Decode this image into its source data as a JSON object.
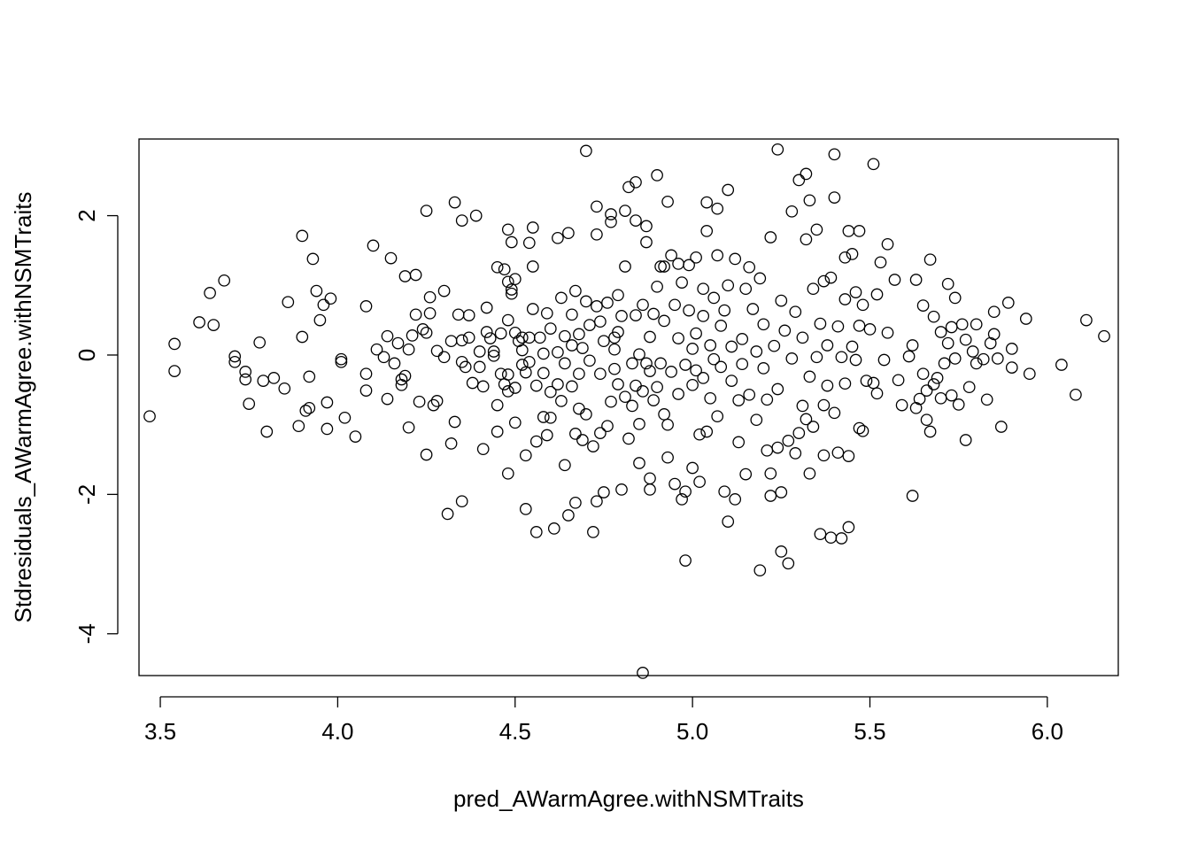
{
  "chart_data": {
    "type": "scatter",
    "title": "",
    "xlabel": "pred_AWarmAgree.withNSMTraits",
    "ylabel": "Stdresiduals_AWarmAgree.withNSMTraits",
    "xlim": [
      3.44,
      6.2
    ],
    "ylim": [
      -4.6,
      3.1
    ],
    "xticks": [
      3.5,
      4.0,
      4.5,
      5.0,
      5.5,
      6.0
    ],
    "xtick_labels": [
      "3.5",
      "4.0",
      "4.5",
      "5.0",
      "5.5",
      "6.0"
    ],
    "yticks": [
      -4,
      -2,
      0,
      2
    ],
    "ytick_labels": [
      "-4",
      "-2",
      "0",
      "2"
    ],
    "grid": false,
    "marker": "open-circle",
    "points": [
      [
        3.47,
        -0.88
      ],
      [
        3.54,
        0.16
      ],
      [
        3.54,
        -0.23
      ],
      [
        3.61,
        0.47
      ],
      [
        3.64,
        0.89
      ],
      [
        3.65,
        0.43
      ],
      [
        3.68,
        1.07
      ],
      [
        3.71,
        -0.02
      ],
      [
        3.71,
        -0.1
      ],
      [
        3.74,
        -0.24
      ],
      [
        3.74,
        -0.35
      ],
      [
        3.75,
        -0.7
      ],
      [
        3.78,
        0.18
      ],
      [
        3.79,
        -0.37
      ],
      [
        3.8,
        -1.1
      ],
      [
        3.82,
        -0.33
      ],
      [
        3.85,
        -0.48
      ],
      [
        3.86,
        0.76
      ],
      [
        3.89,
        -1.02
      ],
      [
        3.9,
        0.26
      ],
      [
        3.9,
        1.71
      ],
      [
        3.91,
        -0.8
      ],
      [
        3.92,
        -0.76
      ],
      [
        3.92,
        -0.31
      ],
      [
        3.93,
        1.38
      ],
      [
        3.94,
        0.92
      ],
      [
        3.95,
        0.5
      ],
      [
        3.96,
        0.72
      ],
      [
        3.97,
        -0.68
      ],
      [
        3.97,
        -1.06
      ],
      [
        3.98,
        0.81
      ],
      [
        4.01,
        -0.06
      ],
      [
        4.01,
        -0.1
      ],
      [
        4.02,
        -0.9
      ],
      [
        4.05,
        -1.17
      ],
      [
        4.08,
        0.7
      ],
      [
        4.08,
        -0.27
      ],
      [
        4.08,
        -0.51
      ],
      [
        4.1,
        1.57
      ],
      [
        4.11,
        0.08
      ],
      [
        4.13,
        -0.03
      ],
      [
        4.14,
        -0.63
      ],
      [
        4.14,
        0.27
      ],
      [
        4.15,
        1.39
      ],
      [
        4.16,
        -0.12
      ],
      [
        4.17,
        0.17
      ],
      [
        4.18,
        -0.35
      ],
      [
        4.18,
        -0.43
      ],
      [
        4.19,
        -0.3
      ],
      [
        4.19,
        1.13
      ],
      [
        4.2,
        0.08
      ],
      [
        4.2,
        -1.04
      ],
      [
        4.21,
        0.28
      ],
      [
        4.22,
        0.58
      ],
      [
        4.22,
        1.15
      ],
      [
        4.23,
        -0.67
      ],
      [
        4.24,
        0.37
      ],
      [
        4.25,
        0.32
      ],
      [
        4.25,
        2.07
      ],
      [
        4.25,
        -1.43
      ],
      [
        4.26,
        0.83
      ],
      [
        4.26,
        0.6
      ],
      [
        4.27,
        -0.72
      ],
      [
        4.28,
        -0.66
      ],
      [
        4.28,
        0.06
      ],
      [
        4.3,
        0.92
      ],
      [
        4.3,
        -0.03
      ],
      [
        4.31,
        -2.28
      ],
      [
        4.32,
        -1.27
      ],
      [
        4.32,
        0.2
      ],
      [
        4.33,
        2.19
      ],
      [
        4.33,
        -0.96
      ],
      [
        4.34,
        0.58
      ],
      [
        4.35,
        -0.1
      ],
      [
        4.35,
        0.21
      ],
      [
        4.35,
        1.93
      ],
      [
        4.35,
        -2.1
      ],
      [
        4.36,
        -0.17
      ],
      [
        4.37,
        0.57
      ],
      [
        4.37,
        0.25
      ],
      [
        4.38,
        -0.4
      ],
      [
        4.39,
        2.0
      ],
      [
        4.4,
        -0.17
      ],
      [
        4.4,
        0.05
      ],
      [
        4.41,
        -0.45
      ],
      [
        4.41,
        -1.35
      ],
      [
        4.42,
        0.33
      ],
      [
        4.42,
        0.68
      ],
      [
        4.43,
        0.24
      ],
      [
        4.44,
        -0.01
      ],
      [
        4.44,
        0.05
      ],
      [
        4.45,
        -0.72
      ],
      [
        4.45,
        -1.1
      ],
      [
        4.45,
        1.26
      ],
      [
        4.46,
        -0.27
      ],
      [
        4.46,
        0.31
      ],
      [
        4.47,
        1.23
      ],
      [
        4.47,
        -0.42
      ],
      [
        4.48,
        1.8
      ],
      [
        4.48,
        1.05
      ],
      [
        4.48,
        0.5
      ],
      [
        4.48,
        -0.28
      ],
      [
        4.48,
        -0.52
      ],
      [
        4.48,
        -1.7
      ],
      [
        4.49,
        0.94
      ],
      [
        4.49,
        0.88
      ],
      [
        4.49,
        1.62
      ],
      [
        4.5,
        -0.47
      ],
      [
        4.5,
        -0.97
      ],
      [
        4.5,
        0.32
      ],
      [
        4.5,
        1.09
      ],
      [
        4.51,
        0.2
      ],
      [
        4.52,
        0.07
      ],
      [
        4.52,
        -0.14
      ],
      [
        4.52,
        0.25
      ],
      [
        4.53,
        -0.25
      ],
      [
        4.53,
        -1.44
      ],
      [
        4.53,
        -2.21
      ],
      [
        4.54,
        1.61
      ],
      [
        4.54,
        -0.1
      ],
      [
        4.54,
        0.25
      ],
      [
        4.55,
        0.66
      ],
      [
        4.55,
        1.27
      ],
      [
        4.55,
        1.83
      ],
      [
        4.56,
        -0.44
      ],
      [
        4.56,
        -1.24
      ],
      [
        4.56,
        -2.54
      ],
      [
        4.57,
        0.25
      ],
      [
        4.58,
        -0.26
      ],
      [
        4.58,
        0.02
      ],
      [
        4.58,
        -0.89
      ],
      [
        4.59,
        0.6
      ],
      [
        4.59,
        -1.15
      ],
      [
        4.6,
        -0.53
      ],
      [
        4.6,
        -0.9
      ],
      [
        4.6,
        0.38
      ],
      [
        4.61,
        -2.49
      ],
      [
        4.62,
        0.04
      ],
      [
        4.62,
        -0.42
      ],
      [
        4.62,
        1.68
      ],
      [
        4.63,
        0.82
      ],
      [
        4.63,
        -0.66
      ],
      [
        4.64,
        -1.58
      ],
      [
        4.64,
        0.27
      ],
      [
        4.64,
        -0.12
      ],
      [
        4.65,
        1.75
      ],
      [
        4.65,
        -2.3
      ],
      [
        4.66,
        -0.45
      ],
      [
        4.66,
        0.58
      ],
      [
        4.66,
        0.14
      ],
      [
        4.67,
        -1.13
      ],
      [
        4.67,
        -2.12
      ],
      [
        4.67,
        0.92
      ],
      [
        4.68,
        -0.27
      ],
      [
        4.68,
        0.3
      ],
      [
        4.68,
        -0.77
      ],
      [
        4.69,
        0.1
      ],
      [
        4.69,
        -1.22
      ],
      [
        4.7,
        2.93
      ],
      [
        4.7,
        0.77
      ],
      [
        4.7,
        -0.85
      ],
      [
        4.71,
        -0.08
      ],
      [
        4.71,
        0.43
      ],
      [
        4.72,
        -1.31
      ],
      [
        4.72,
        -2.54
      ],
      [
        4.73,
        0.7
      ],
      [
        4.73,
        2.13
      ],
      [
        4.73,
        1.73
      ],
      [
        4.73,
        -2.1
      ],
      [
        4.74,
        -0.27
      ],
      [
        4.74,
        0.48
      ],
      [
        4.74,
        -1.12
      ],
      [
        4.75,
        -1.97
      ],
      [
        4.75,
        0.2
      ],
      [
        4.76,
        0.75
      ],
      [
        4.76,
        -1.02
      ],
      [
        4.77,
        2.02
      ],
      [
        4.77,
        -0.67
      ],
      [
        4.77,
        1.91
      ],
      [
        4.78,
        0.08
      ],
      [
        4.78,
        0.25
      ],
      [
        4.78,
        -0.2
      ],
      [
        4.79,
        0.33
      ],
      [
        4.79,
        0.86
      ],
      [
        4.79,
        -0.42
      ],
      [
        4.8,
        -1.93
      ],
      [
        4.8,
        0.56
      ],
      [
        4.81,
        1.27
      ],
      [
        4.81,
        -0.6
      ],
      [
        4.81,
        2.07
      ],
      [
        4.82,
        -1.2
      ],
      [
        4.82,
        2.41
      ],
      [
        4.83,
        -0.12
      ],
      [
        4.83,
        -0.73
      ],
      [
        4.84,
        0.57
      ],
      [
        4.84,
        2.48
      ],
      [
        4.84,
        -0.44
      ],
      [
        4.84,
        1.93
      ],
      [
        4.85,
        0.01
      ],
      [
        4.85,
        -0.99
      ],
      [
        4.85,
        -1.55
      ],
      [
        4.86,
        -0.52
      ],
      [
        4.86,
        0.72
      ],
      [
        4.86,
        -4.56
      ],
      [
        4.87,
        -0.12
      ],
      [
        4.87,
        1.62
      ],
      [
        4.87,
        1.85
      ],
      [
        4.88,
        -0.23
      ],
      [
        4.88,
        0.26
      ],
      [
        4.88,
        -1.77
      ],
      [
        4.88,
        -1.93
      ],
      [
        4.89,
        0.59
      ],
      [
        4.89,
        -0.65
      ],
      [
        4.9,
        2.58
      ],
      [
        4.9,
        0.98
      ],
      [
        4.9,
        -0.46
      ],
      [
        4.91,
        1.27
      ],
      [
        4.91,
        -0.12
      ],
      [
        4.92,
        1.27
      ],
      [
        4.92,
        -0.85
      ],
      [
        4.92,
        0.49
      ],
      [
        4.93,
        2.2
      ],
      [
        4.93,
        -1.47
      ],
      [
        4.93,
        -1.0
      ],
      [
        4.94,
        1.43
      ],
      [
        4.94,
        -0.24
      ],
      [
        4.95,
        0.72
      ],
      [
        4.95,
        -1.85
      ],
      [
        4.96,
        1.31
      ],
      [
        4.96,
        -0.56
      ],
      [
        4.96,
        0.24
      ],
      [
        4.97,
        -2.07
      ],
      [
        4.97,
        1.04
      ],
      [
        4.98,
        -0.14
      ],
      [
        4.98,
        -2.95
      ],
      [
        4.98,
        -1.96
      ],
      [
        4.99,
        0.64
      ],
      [
        4.99,
        1.29
      ],
      [
        5.0,
        -0.43
      ],
      [
        5.0,
        0.09
      ],
      [
        5.0,
        -1.62
      ],
      [
        5.01,
        1.4
      ],
      [
        5.01,
        -0.22
      ],
      [
        5.01,
        0.31
      ],
      [
        5.02,
        -1.14
      ],
      [
        5.02,
        -1.82
      ],
      [
        5.03,
        0.95
      ],
      [
        5.03,
        -0.33
      ],
      [
        5.03,
        0.56
      ],
      [
        5.04,
        1.78
      ],
      [
        5.04,
        -1.1
      ],
      [
        5.04,
        2.19
      ],
      [
        5.05,
        -0.62
      ],
      [
        5.05,
        0.14
      ],
      [
        5.06,
        0.82
      ],
      [
        5.06,
        -0.06
      ],
      [
        5.07,
        2.1
      ],
      [
        5.07,
        1.43
      ],
      [
        5.07,
        -0.88
      ],
      [
        5.08,
        0.42
      ],
      [
        5.08,
        -0.17
      ],
      [
        5.09,
        -1.96
      ],
      [
        5.09,
        0.64
      ],
      [
        5.1,
        -2.39
      ],
      [
        5.1,
        1.0
      ],
      [
        5.1,
        2.37
      ],
      [
        5.11,
        -0.37
      ],
      [
        5.11,
        0.12
      ],
      [
        5.12,
        -2.07
      ],
      [
        5.12,
        1.38
      ],
      [
        5.13,
        -0.65
      ],
      [
        5.13,
        -1.25
      ],
      [
        5.14,
        0.23
      ],
      [
        5.14,
        -0.13
      ],
      [
        5.15,
        0.95
      ],
      [
        5.15,
        -1.71
      ],
      [
        5.16,
        1.26
      ],
      [
        5.16,
        -0.57
      ],
      [
        5.17,
        0.66
      ],
      [
        5.18,
        -0.93
      ],
      [
        5.18,
        0.05
      ],
      [
        5.19,
        -3.09
      ],
      [
        5.19,
        1.1
      ],
      [
        5.2,
        -0.19
      ],
      [
        5.2,
        0.44
      ],
      [
        5.21,
        -1.37
      ],
      [
        5.21,
        -0.64
      ],
      [
        5.22,
        1.69
      ],
      [
        5.22,
        -2.02
      ],
      [
        5.22,
        -1.7
      ],
      [
        5.23,
        0.13
      ],
      [
        5.24,
        2.95
      ],
      [
        5.24,
        -1.33
      ],
      [
        5.24,
        -0.49
      ],
      [
        5.25,
        -2.82
      ],
      [
        5.25,
        0.78
      ],
      [
        5.25,
        -1.97
      ],
      [
        5.26,
        0.35
      ],
      [
        5.27,
        -1.23
      ],
      [
        5.27,
        -2.99
      ],
      [
        5.28,
        2.06
      ],
      [
        5.28,
        -0.05
      ],
      [
        5.29,
        -1.41
      ],
      [
        5.29,
        0.62
      ],
      [
        5.3,
        2.51
      ],
      [
        5.3,
        -1.12
      ],
      [
        5.31,
        0.25
      ],
      [
        5.31,
        -0.73
      ],
      [
        5.32,
        2.6
      ],
      [
        5.32,
        1.66
      ],
      [
        5.32,
        -0.92
      ],
      [
        5.33,
        2.22
      ],
      [
        5.33,
        -0.31
      ],
      [
        5.33,
        -1.7
      ],
      [
        5.34,
        0.95
      ],
      [
        5.34,
        -1.03
      ],
      [
        5.35,
        -0.03
      ],
      [
        5.35,
        1.8
      ],
      [
        5.36,
        0.45
      ],
      [
        5.36,
        -2.57
      ],
      [
        5.37,
        -0.72
      ],
      [
        5.37,
        1.06
      ],
      [
        5.37,
        -1.44
      ],
      [
        5.38,
        0.14
      ],
      [
        5.38,
        -0.44
      ],
      [
        5.39,
        -2.62
      ],
      [
        5.39,
        1.11
      ],
      [
        5.4,
        2.88
      ],
      [
        5.4,
        -0.83
      ],
      [
        5.4,
        2.26
      ],
      [
        5.41,
        -1.4
      ],
      [
        5.41,
        0.41
      ],
      [
        5.42,
        -2.63
      ],
      [
        5.42,
        -0.03
      ],
      [
        5.43,
        1.4
      ],
      [
        5.43,
        0.8
      ],
      [
        5.43,
        -0.41
      ],
      [
        5.44,
        -2.47
      ],
      [
        5.44,
        1.78
      ],
      [
        5.44,
        -1.45
      ],
      [
        5.45,
        0.12
      ],
      [
        5.45,
        1.45
      ],
      [
        5.46,
        -0.07
      ],
      [
        5.46,
        0.9
      ],
      [
        5.47,
        -1.05
      ],
      [
        5.47,
        1.78
      ],
      [
        5.47,
        0.42
      ],
      [
        5.48,
        -1.09
      ],
      [
        5.48,
        0.72
      ],
      [
        5.49,
        -0.37
      ],
      [
        5.5,
        0.37
      ],
      [
        5.51,
        2.74
      ],
      [
        5.51,
        -0.4
      ],
      [
        5.52,
        0.87
      ],
      [
        5.52,
        -0.55
      ],
      [
        5.53,
        1.33
      ],
      [
        5.54,
        -0.07
      ],
      [
        5.55,
        1.59
      ],
      [
        5.55,
        0.32
      ],
      [
        5.57,
        1.08
      ],
      [
        5.58,
        -0.36
      ],
      [
        5.59,
        -0.72
      ],
      [
        5.61,
        -0.02
      ],
      [
        5.62,
        -2.02
      ],
      [
        5.62,
        0.14
      ],
      [
        5.63,
        -0.76
      ],
      [
        5.63,
        1.08
      ],
      [
        5.64,
        -0.63
      ],
      [
        5.65,
        -0.27
      ],
      [
        5.65,
        0.71
      ],
      [
        5.66,
        -0.51
      ],
      [
        5.66,
        -0.93
      ],
      [
        5.67,
        1.37
      ],
      [
        5.67,
        -1.1
      ],
      [
        5.68,
        -0.42
      ],
      [
        5.68,
        0.55
      ],
      [
        5.69,
        -0.33
      ],
      [
        5.7,
        0.33
      ],
      [
        5.7,
        -0.62
      ],
      [
        5.71,
        -0.12
      ],
      [
        5.72,
        1.02
      ],
      [
        5.72,
        0.17
      ],
      [
        5.73,
        0.4
      ],
      [
        5.73,
        -0.58
      ],
      [
        5.74,
        0.82
      ],
      [
        5.74,
        -0.05
      ],
      [
        5.75,
        -0.71
      ],
      [
        5.76,
        0.44
      ],
      [
        5.77,
        -1.22
      ],
      [
        5.77,
        0.22
      ],
      [
        5.78,
        -0.46
      ],
      [
        5.79,
        0.05
      ],
      [
        5.8,
        -0.12
      ],
      [
        5.8,
        0.44
      ],
      [
        5.82,
        -0.06
      ],
      [
        5.83,
        -0.64
      ],
      [
        5.84,
        0.17
      ],
      [
        5.85,
        0.62
      ],
      [
        5.85,
        0.3
      ],
      [
        5.86,
        -0.05
      ],
      [
        5.87,
        -1.03
      ],
      [
        5.89,
        0.75
      ],
      [
        5.9,
        0.09
      ],
      [
        5.9,
        -0.18
      ],
      [
        5.94,
        0.52
      ],
      [
        5.95,
        -0.27
      ],
      [
        6.04,
        -0.14
      ],
      [
        6.08,
        -0.57
      ],
      [
        6.11,
        0.5
      ],
      [
        6.16,
        0.27
      ]
    ]
  }
}
